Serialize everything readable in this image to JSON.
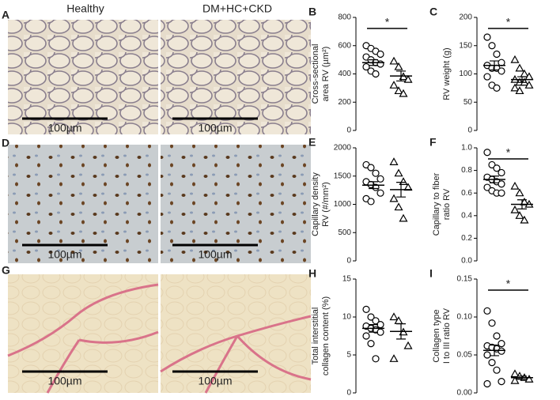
{
  "figure": {
    "panels": [
      "A",
      "D",
      "G"
    ],
    "columns": [
      "Healthy",
      "DM+HC+CKD"
    ],
    "scale_bar": "100µm"
  },
  "chart_data": [
    {
      "type": "dot",
      "panel": "B",
      "ylabel": [
        "Cross-sectional",
        "area RV (µm²)"
      ],
      "ylim": [
        0,
        800
      ],
      "yticks": [
        0,
        200,
        400,
        600,
        800
      ],
      "annotation": "*",
      "series": [
        {
          "marker": "circle",
          "color": "#000000",
          "values": [
            600,
            580,
            560,
            540,
            520,
            500,
            480,
            470,
            450,
            420,
            400
          ],
          "mean": 480,
          "sem": 20
        },
        {
          "marker": "triangle",
          "color": "#000000",
          "values": [
            490,
            450,
            380,
            360,
            320,
            280,
            260
          ],
          "mean": 385,
          "sem": 35
        }
      ]
    },
    {
      "type": "dot",
      "panel": "C",
      "ylabel": [
        "RV weight (g)"
      ],
      "ylim": [
        0,
        200
      ],
      "yticks": [
        0,
        50,
        100,
        150,
        200
      ],
      "annotation": "*",
      "series": [
        {
          "marker": "circle",
          "color": "#000000",
          "values": [
            165,
            150,
            135,
            120,
            115,
            110,
            110,
            105,
            95,
            80,
            75
          ],
          "mean": 115,
          "sem": 8
        },
        {
          "marker": "triangle",
          "color": "#000000",
          "values": [
            125,
            110,
            100,
            95,
            90,
            85,
            85,
            80,
            75,
            70
          ],
          "mean": 90,
          "sem": 5
        }
      ]
    },
    {
      "type": "dot",
      "panel": "E",
      "ylabel": [
        "Capillary density",
        "RV (#/mm²)"
      ],
      "ylim": [
        0,
        2000
      ],
      "yticks": [
        0,
        500,
        1000,
        1500,
        2000
      ],
      "series": [
        {
          "marker": "circle",
          "color": "#000000",
          "values": [
            1700,
            1650,
            1550,
            1450,
            1400,
            1350,
            1300,
            1200,
            1100,
            1050
          ],
          "mean": 1340,
          "sem": 60
        },
        {
          "marker": "triangle",
          "color": "#000000",
          "values": [
            1750,
            1550,
            1400,
            1300,
            1100,
            950,
            750
          ],
          "mean": 1260,
          "sem": 130
        }
      ]
    },
    {
      "type": "dot",
      "panel": "F",
      "ylabel": [
        "Capillary to fiber",
        "ratio RV"
      ],
      "ylim": [
        0,
        1.0
      ],
      "yticks": [
        {
          "value": 0,
          "label": "0.0"
        },
        0.2,
        0.4,
        0.6,
        0.8,
        {
          "value": 1,
          "label": "1.0"
        }
      ],
      "annotation": "*",
      "series": [
        {
          "marker": "circle",
          "color": "#000000",
          "values": [
            0.96,
            0.85,
            0.82,
            0.78,
            0.74,
            0.72,
            0.7,
            0.68,
            0.65,
            0.62,
            0.6,
            0.6
          ],
          "mean": 0.72,
          "sem": 0.03
        },
        {
          "marker": "triangle",
          "color": "#000000",
          "values": [
            0.66,
            0.6,
            0.52,
            0.5,
            0.45,
            0.4,
            0.36
          ],
          "mean": 0.5,
          "sem": 0.04
        }
      ]
    },
    {
      "type": "dot",
      "panel": "H",
      "ylabel": [
        "Total interstitial",
        "collagen content (%)"
      ],
      "ylim": [
        0,
        15
      ],
      "yticks": [
        0,
        5,
        10,
        15
      ],
      "series": [
        {
          "marker": "circle",
          "color": "#000000",
          "values": [
            11,
            10,
            9.5,
            9,
            8.8,
            8.5,
            8.3,
            8,
            7.5,
            6.5,
            4.5
          ],
          "mean": 8.5,
          "sem": 0.5
        },
        {
          "marker": "triangle",
          "color": "#000000",
          "values": [
            10,
            9.5,
            8,
            6.2,
            4.5
          ],
          "mean": 8.1,
          "sem": 1
        }
      ]
    },
    {
      "type": "dot",
      "panel": "I",
      "ylabel": [
        "Collagen type",
        "I to III ratio RV"
      ],
      "ylim": [
        0,
        0.15
      ],
      "yticks": [
        {
          "value": 0,
          "label": "0.00"
        },
        0.05,
        {
          "value": 0.1,
          "label": "0.10"
        },
        0.15
      ],
      "annotation": "*",
      "series": [
        {
          "marker": "circle",
          "color": "#000000",
          "values": [
            0.108,
            0.092,
            0.075,
            0.065,
            0.062,
            0.06,
            0.058,
            0.055,
            0.05,
            0.04,
            0.03,
            0.015,
            0.012
          ],
          "mean": 0.056,
          "sem": 0.007
        },
        {
          "marker": "triangle",
          "color": "#000000",
          "values": [
            0.025,
            0.022,
            0.02,
            0.018,
            0.016
          ],
          "mean": 0.02,
          "sem": 0.002
        }
      ]
    }
  ]
}
